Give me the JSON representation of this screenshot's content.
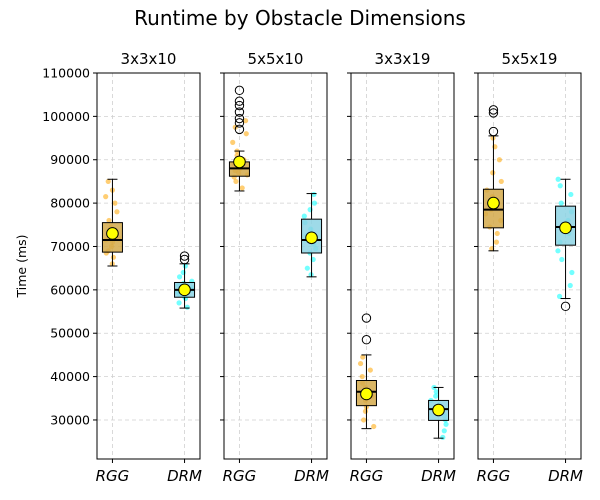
{
  "chart_data": {
    "type": "box",
    "title": "Runtime by Obstacle Dimensions",
    "ylabel": "Time (ms)",
    "xlabel": "",
    "ylim": [
      21000,
      110000
    ],
    "yticks": [
      30000,
      40000,
      50000,
      60000,
      70000,
      80000,
      90000,
      100000,
      110000
    ],
    "grid": true,
    "categories": [
      "RGG",
      "DRM"
    ],
    "series_colors": {
      "RGG": "#ffa500",
      "DRM": "#00ffff"
    },
    "box_colors": {
      "RGG": "#d4a94a",
      "DRM": "#8dd3e4"
    },
    "mean_marker_color": "#ffff00",
    "panels": [
      {
        "title": "3x3x10",
        "boxes": {
          "RGG": {
            "whisker_low": 65500,
            "q1": 68700,
            "median": 71500,
            "q3": 75500,
            "whisker_high": 85500,
            "mean": 73000,
            "outliers": [],
            "points": [
              66000,
              67500,
              68500,
              69000,
              70000,
              71000,
              71500,
              72000,
              73000,
              74500,
              76000,
              78000,
              80000,
              81500,
              83000,
              85000
            ]
          },
          "DRM": {
            "whisker_low": 55800,
            "q1": 58300,
            "median": 60000,
            "q3": 61700,
            "whisker_high": 66000,
            "mean": 60000,
            "outliers": [
              67000,
              67800
            ],
            "points": [
              56000,
              57000,
              58000,
              58500,
              59000,
              59500,
              60000,
              60500,
              61000,
              61500,
              62000,
              63000,
              64000,
              65500
            ]
          }
        }
      },
      {
        "title": "5x5x10",
        "boxes": {
          "RGG": {
            "whisker_low": 82800,
            "q1": 86200,
            "median": 88000,
            "q3": 89500,
            "whisker_high": 92000,
            "mean": 89500,
            "outliers": [
              97000,
              98500,
              99500,
              101000,
              102500,
              103500,
              106000
            ],
            "points": [
              83500,
              85000,
              86000,
              86500,
              87000,
              87500,
              88000,
              88500,
              89000,
              90000,
              91000,
              92000,
              94000,
              96000,
              97500,
              99000
            ]
          },
          "DRM": {
            "whisker_low": 63000,
            "q1": 68500,
            "median": 71500,
            "q3": 76300,
            "whisker_high": 82200,
            "mean": 72000,
            "outliers": [],
            "points": [
              63500,
              65000,
              67000,
              68500,
              69500,
              70500,
              71500,
              72500,
              74000,
              75500,
              77000,
              78500,
              80000,
              82000
            ]
          }
        }
      },
      {
        "title": "3x3x19",
        "boxes": {
          "RGG": {
            "whisker_low": 28000,
            "q1": 33300,
            "median": 36500,
            "q3": 39100,
            "whisker_high": 45000,
            "mean": 36000,
            "outliers": [
              48500,
              53500
            ],
            "points": [
              28500,
              30000,
              32000,
              33000,
              34500,
              35500,
              36500,
              37500,
              38500,
              40000,
              41500,
              43000,
              44500
            ]
          },
          "DRM": {
            "whisker_low": 25800,
            "q1": 29900,
            "median": 32500,
            "q3": 34500,
            "whisker_high": 37500,
            "mean": 32300,
            "outliers": [],
            "points": [
              26000,
              27500,
              29000,
              30000,
              31000,
              32000,
              32500,
              33500,
              34500,
              35500,
              36500,
              37500
            ]
          }
        }
      },
      {
        "title": "5x5x19",
        "boxes": {
          "RGG": {
            "whisker_low": 69000,
            "q1": 74300,
            "median": 78500,
            "q3": 83200,
            "whisker_high": 95500,
            "mean": 80000,
            "outliers": [
              96500,
              100800,
              101500
            ],
            "points": [
              69500,
              71000,
              73000,
              74500,
              76000,
              77500,
              78500,
              80000,
              81500,
              83000,
              85000,
              87000,
              90000,
              93000,
              95000
            ]
          },
          "DRM": {
            "whisker_low": 58000,
            "q1": 70300,
            "median": 74500,
            "q3": 79300,
            "whisker_high": 85500,
            "mean": 74300,
            "outliers": [
              56200
            ],
            "points": [
              58500,
              61000,
              64000,
              67000,
              69000,
              71000,
              73000,
              74500,
              76000,
              78000,
              80000,
              82000,
              84000,
              85500
            ]
          }
        }
      }
    ]
  }
}
